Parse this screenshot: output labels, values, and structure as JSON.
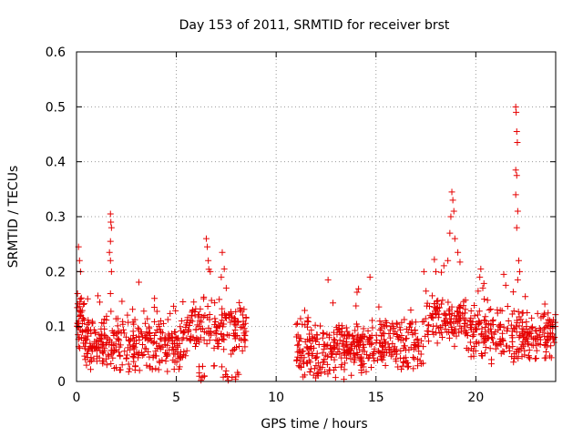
{
  "chart_data": {
    "type": "scatter",
    "title": "Day 153 of 2011, SRMTID for receiver brst",
    "xlabel": "GPS time / hours",
    "ylabel": "SRMTID / TECUs",
    "xlim": [
      0,
      24
    ],
    "ylim": [
      0,
      0.6
    ],
    "xticks": [
      0,
      5,
      10,
      15,
      20
    ],
    "xtick_labels": [
      "0",
      "5",
      "10",
      "15",
      "20"
    ],
    "yticks": [
      0,
      0.1,
      0.2,
      0.3,
      0.4,
      0.5,
      0.6
    ],
    "ytick_labels": [
      "0",
      "0.1",
      "0.2",
      "0.3",
      "0.4",
      "0.5",
      "0.6"
    ],
    "grid": true,
    "marker": "+",
    "color": "#e60000",
    "gap_hours": [
      8.5,
      11.0
    ],
    "highlights": [
      {
        "x": 0.1,
        "y": 0.245
      },
      {
        "x": 0.15,
        "y": 0.22
      },
      {
        "x": 0.2,
        "y": 0.2
      },
      {
        "x": 0.05,
        "y": 0.16
      },
      {
        "x": 1.7,
        "y": 0.305
      },
      {
        "x": 1.72,
        "y": 0.29
      },
      {
        "x": 1.75,
        "y": 0.28
      },
      {
        "x": 1.7,
        "y": 0.255
      },
      {
        "x": 1.65,
        "y": 0.235
      },
      {
        "x": 1.7,
        "y": 0.22
      },
      {
        "x": 1.75,
        "y": 0.2
      },
      {
        "x": 1.7,
        "y": 0.16
      },
      {
        "x": 6.5,
        "y": 0.26
      },
      {
        "x": 6.55,
        "y": 0.245
      },
      {
        "x": 6.6,
        "y": 0.22
      },
      {
        "x": 6.7,
        "y": 0.2
      },
      {
        "x": 7.3,
        "y": 0.235
      },
      {
        "x": 7.4,
        "y": 0.205
      },
      {
        "x": 7.25,
        "y": 0.19
      },
      {
        "x": 7.5,
        "y": 0.17
      },
      {
        "x": 18.8,
        "y": 0.345
      },
      {
        "x": 18.85,
        "y": 0.33
      },
      {
        "x": 18.9,
        "y": 0.31
      },
      {
        "x": 18.75,
        "y": 0.3
      },
      {
        "x": 18.7,
        "y": 0.27
      },
      {
        "x": 18.95,
        "y": 0.26
      },
      {
        "x": 19.1,
        "y": 0.235
      },
      {
        "x": 18.6,
        "y": 0.22
      },
      {
        "x": 20.25,
        "y": 0.205
      },
      {
        "x": 20.2,
        "y": 0.19
      },
      {
        "x": 21.4,
        "y": 0.195
      },
      {
        "x": 21.5,
        "y": 0.175
      },
      {
        "x": 22.0,
        "y": 0.5
      },
      {
        "x": 22.02,
        "y": 0.49
      },
      {
        "x": 22.05,
        "y": 0.455
      },
      {
        "x": 22.08,
        "y": 0.435
      },
      {
        "x": 22.0,
        "y": 0.385
      },
      {
        "x": 22.05,
        "y": 0.375
      },
      {
        "x": 22.0,
        "y": 0.34
      },
      {
        "x": 22.1,
        "y": 0.31
      },
      {
        "x": 22.05,
        "y": 0.28
      },
      {
        "x": 22.15,
        "y": 0.22
      },
      {
        "x": 22.2,
        "y": 0.2
      },
      {
        "x": 22.1,
        "y": 0.185
      },
      {
        "x": 12.6,
        "y": 0.185
      },
      {
        "x": 14.7,
        "y": 0.19
      },
      {
        "x": 17.4,
        "y": 0.2
      },
      {
        "x": 18.0,
        "y": 0.2
      }
    ]
  }
}
